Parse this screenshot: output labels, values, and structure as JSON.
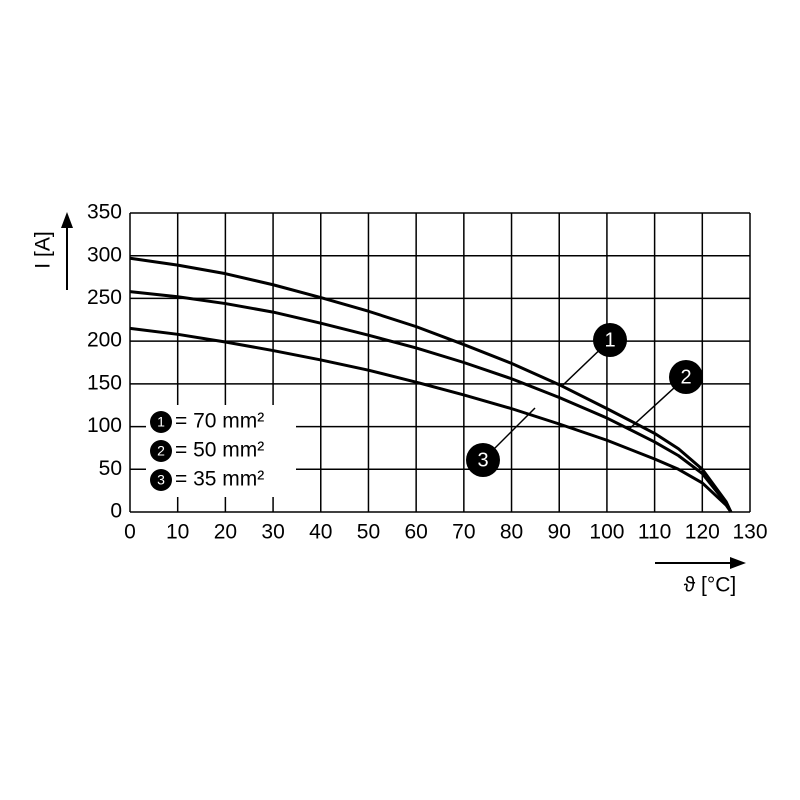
{
  "chart_data": {
    "type": "line",
    "y_label": "I [A]",
    "x_label": "ϑ [°C]",
    "xlim": [
      0,
      130
    ],
    "ylim": [
      0,
      350
    ],
    "xticks": [
      0,
      10,
      20,
      30,
      40,
      50,
      60,
      70,
      80,
      90,
      100,
      110,
      120,
      130
    ],
    "yticks": [
      0,
      50,
      100,
      150,
      200,
      250,
      300,
      350
    ],
    "grid": true,
    "color": "#000000",
    "x": [
      0,
      10,
      20,
      30,
      40,
      50,
      60,
      70,
      80,
      90,
      100,
      110,
      115,
      120,
      125,
      126
    ],
    "series": [
      {
        "label": "1",
        "name": "= 70 mm²",
        "color": "#000000",
        "values": [
          297,
          289,
          279,
          266,
          251,
          235,
          217,
          196,
          174,
          149,
          121,
          92,
          74,
          50,
          12,
          0
        ]
      },
      {
        "label": "2",
        "name": "= 50 mm²",
        "color": "#000000",
        "values": [
          258,
          252,
          244,
          234,
          221,
          207,
          192,
          175,
          156,
          134,
          110,
          82,
          66,
          45,
          10,
          0
        ]
      },
      {
        "label": "3",
        "name": "= 35 mm²",
        "color": "#000000",
        "values": [
          215,
          208,
          199,
          189,
          178,
          166,
          152,
          137,
          121,
          103,
          84,
          62,
          50,
          34,
          8,
          0
        ]
      }
    ]
  }
}
